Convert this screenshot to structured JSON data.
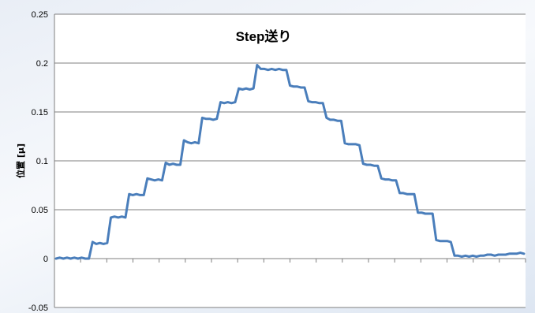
{
  "colors": {
    "series": "#4a7ebb",
    "gridline": "#7f7f7f",
    "axis": "#7f7f7f",
    "plot_background": "#ffffff"
  },
  "chart_data": {
    "type": "line",
    "title": "Step送り",
    "xlabel": "",
    "ylabel": "位置 [μ]",
    "ylim": [
      -0.05,
      0.25
    ],
    "y_ticks": [
      "0.25",
      "0.2",
      "0.15",
      "0.1",
      "0.05",
      "0",
      "-0.05"
    ],
    "y_tick_values": [
      0.25,
      0.2,
      0.15,
      0.1,
      0.05,
      0,
      -0.05
    ],
    "x_tick_count": 18,
    "grid": "horizontal",
    "legend": "none",
    "series": [
      {
        "values": [
          0.0,
          0.001,
          0.0,
          0.001,
          0.0,
          0.001,
          0.0,
          0.001,
          0.0,
          0.0,
          0.017,
          0.015,
          0.016,
          0.015,
          0.016,
          0.042,
          0.043,
          0.042,
          0.043,
          0.042,
          0.066,
          0.065,
          0.066,
          0.065,
          0.065,
          0.082,
          0.081,
          0.08,
          0.081,
          0.08,
          0.098,
          0.096,
          0.097,
          0.096,
          0.096,
          0.121,
          0.119,
          0.118,
          0.119,
          0.118,
          0.144,
          0.143,
          0.143,
          0.142,
          0.143,
          0.16,
          0.159,
          0.16,
          0.159,
          0.16,
          0.174,
          0.173,
          0.174,
          0.173,
          0.174,
          0.198,
          0.194,
          0.194,
          0.193,
          0.194,
          0.193,
          0.194,
          0.193,
          0.193,
          0.177,
          0.176,
          0.176,
          0.175,
          0.175,
          0.161,
          0.16,
          0.16,
          0.159,
          0.159,
          0.144,
          0.142,
          0.142,
          0.141,
          0.141,
          0.118,
          0.117,
          0.117,
          0.117,
          0.116,
          0.097,
          0.096,
          0.096,
          0.095,
          0.095,
          0.082,
          0.081,
          0.081,
          0.08,
          0.08,
          0.067,
          0.067,
          0.066,
          0.066,
          0.066,
          0.047,
          0.047,
          0.046,
          0.046,
          0.046,
          0.019,
          0.018,
          0.018,
          0.018,
          0.017,
          0.003,
          0.003,
          0.002,
          0.003,
          0.002,
          0.003,
          0.002,
          0.003,
          0.003,
          0.004,
          0.004,
          0.003,
          0.004,
          0.004,
          0.004,
          0.005,
          0.005,
          0.005,
          0.006,
          0.005
        ]
      }
    ]
  }
}
